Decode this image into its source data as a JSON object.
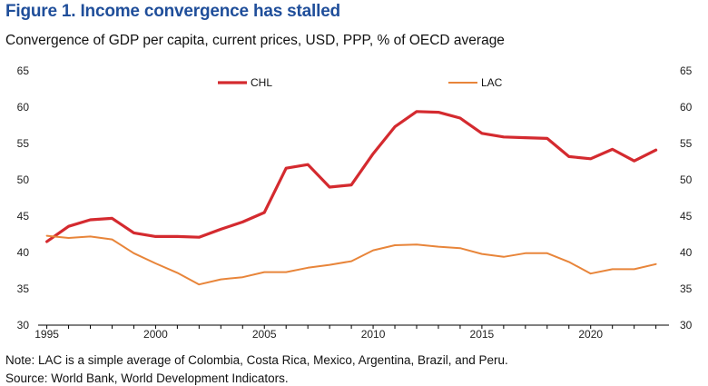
{
  "figure": {
    "title": "Figure 1. Income convergence has stalled",
    "subtitle": "Convergence of GDP per capita, current prices, USD, PPP, % of OECD average",
    "note": "Note: LAC is a simple average of Colombia, Costa Rica, Mexico, Argentina, Brazil, and Peru.",
    "source": "Source: World Bank, World Development Indicators."
  },
  "colors": {
    "chl": "#d42a2f",
    "lac": "#e8853a",
    "axis": "#000000"
  },
  "chart_data": {
    "type": "line",
    "title": "Convergence of GDP per capita, current prices, USD, PPP, % of OECD average",
    "xlabel": "",
    "ylabel": "",
    "ylim": [
      30,
      65
    ],
    "yticks": [
      30,
      35,
      40,
      45,
      50,
      55,
      60,
      65
    ],
    "xlim": [
      1994.6,
      2023.6
    ],
    "xticks": [
      1995,
      2000,
      2005,
      2010,
      2015,
      2020
    ],
    "grid": false,
    "legend": "top",
    "x": [
      1995,
      1996,
      1997,
      1998,
      1999,
      2000,
      2001,
      2002,
      2003,
      2004,
      2005,
      2006,
      2007,
      2008,
      2009,
      2010,
      2011,
      2012,
      2013,
      2014,
      2015,
      2016,
      2017,
      2018,
      2019,
      2020,
      2021,
      2022,
      2023
    ],
    "series": [
      {
        "name": "CHL",
        "values": [
          41.5,
          43.6,
          44.5,
          44.7,
          42.7,
          42.2,
          42.2,
          42.1,
          43.2,
          44.2,
          45.5,
          51.6,
          52.1,
          49.0,
          49.3,
          53.6,
          57.3,
          59.4,
          59.3,
          58.5,
          56.4,
          55.9,
          55.8,
          55.7,
          53.2,
          52.9,
          54.2,
          52.6,
          54.1
        ]
      },
      {
        "name": "LAC",
        "values": [
          42.3,
          42.0,
          42.2,
          41.8,
          39.9,
          38.5,
          37.2,
          35.6,
          36.3,
          36.6,
          37.3,
          37.3,
          37.9,
          38.3,
          38.8,
          40.3,
          41.0,
          41.1,
          40.8,
          40.6,
          39.8,
          39.4,
          39.9,
          39.9,
          38.7,
          37.1,
          37.7,
          37.7,
          38.4
        ]
      }
    ]
  }
}
